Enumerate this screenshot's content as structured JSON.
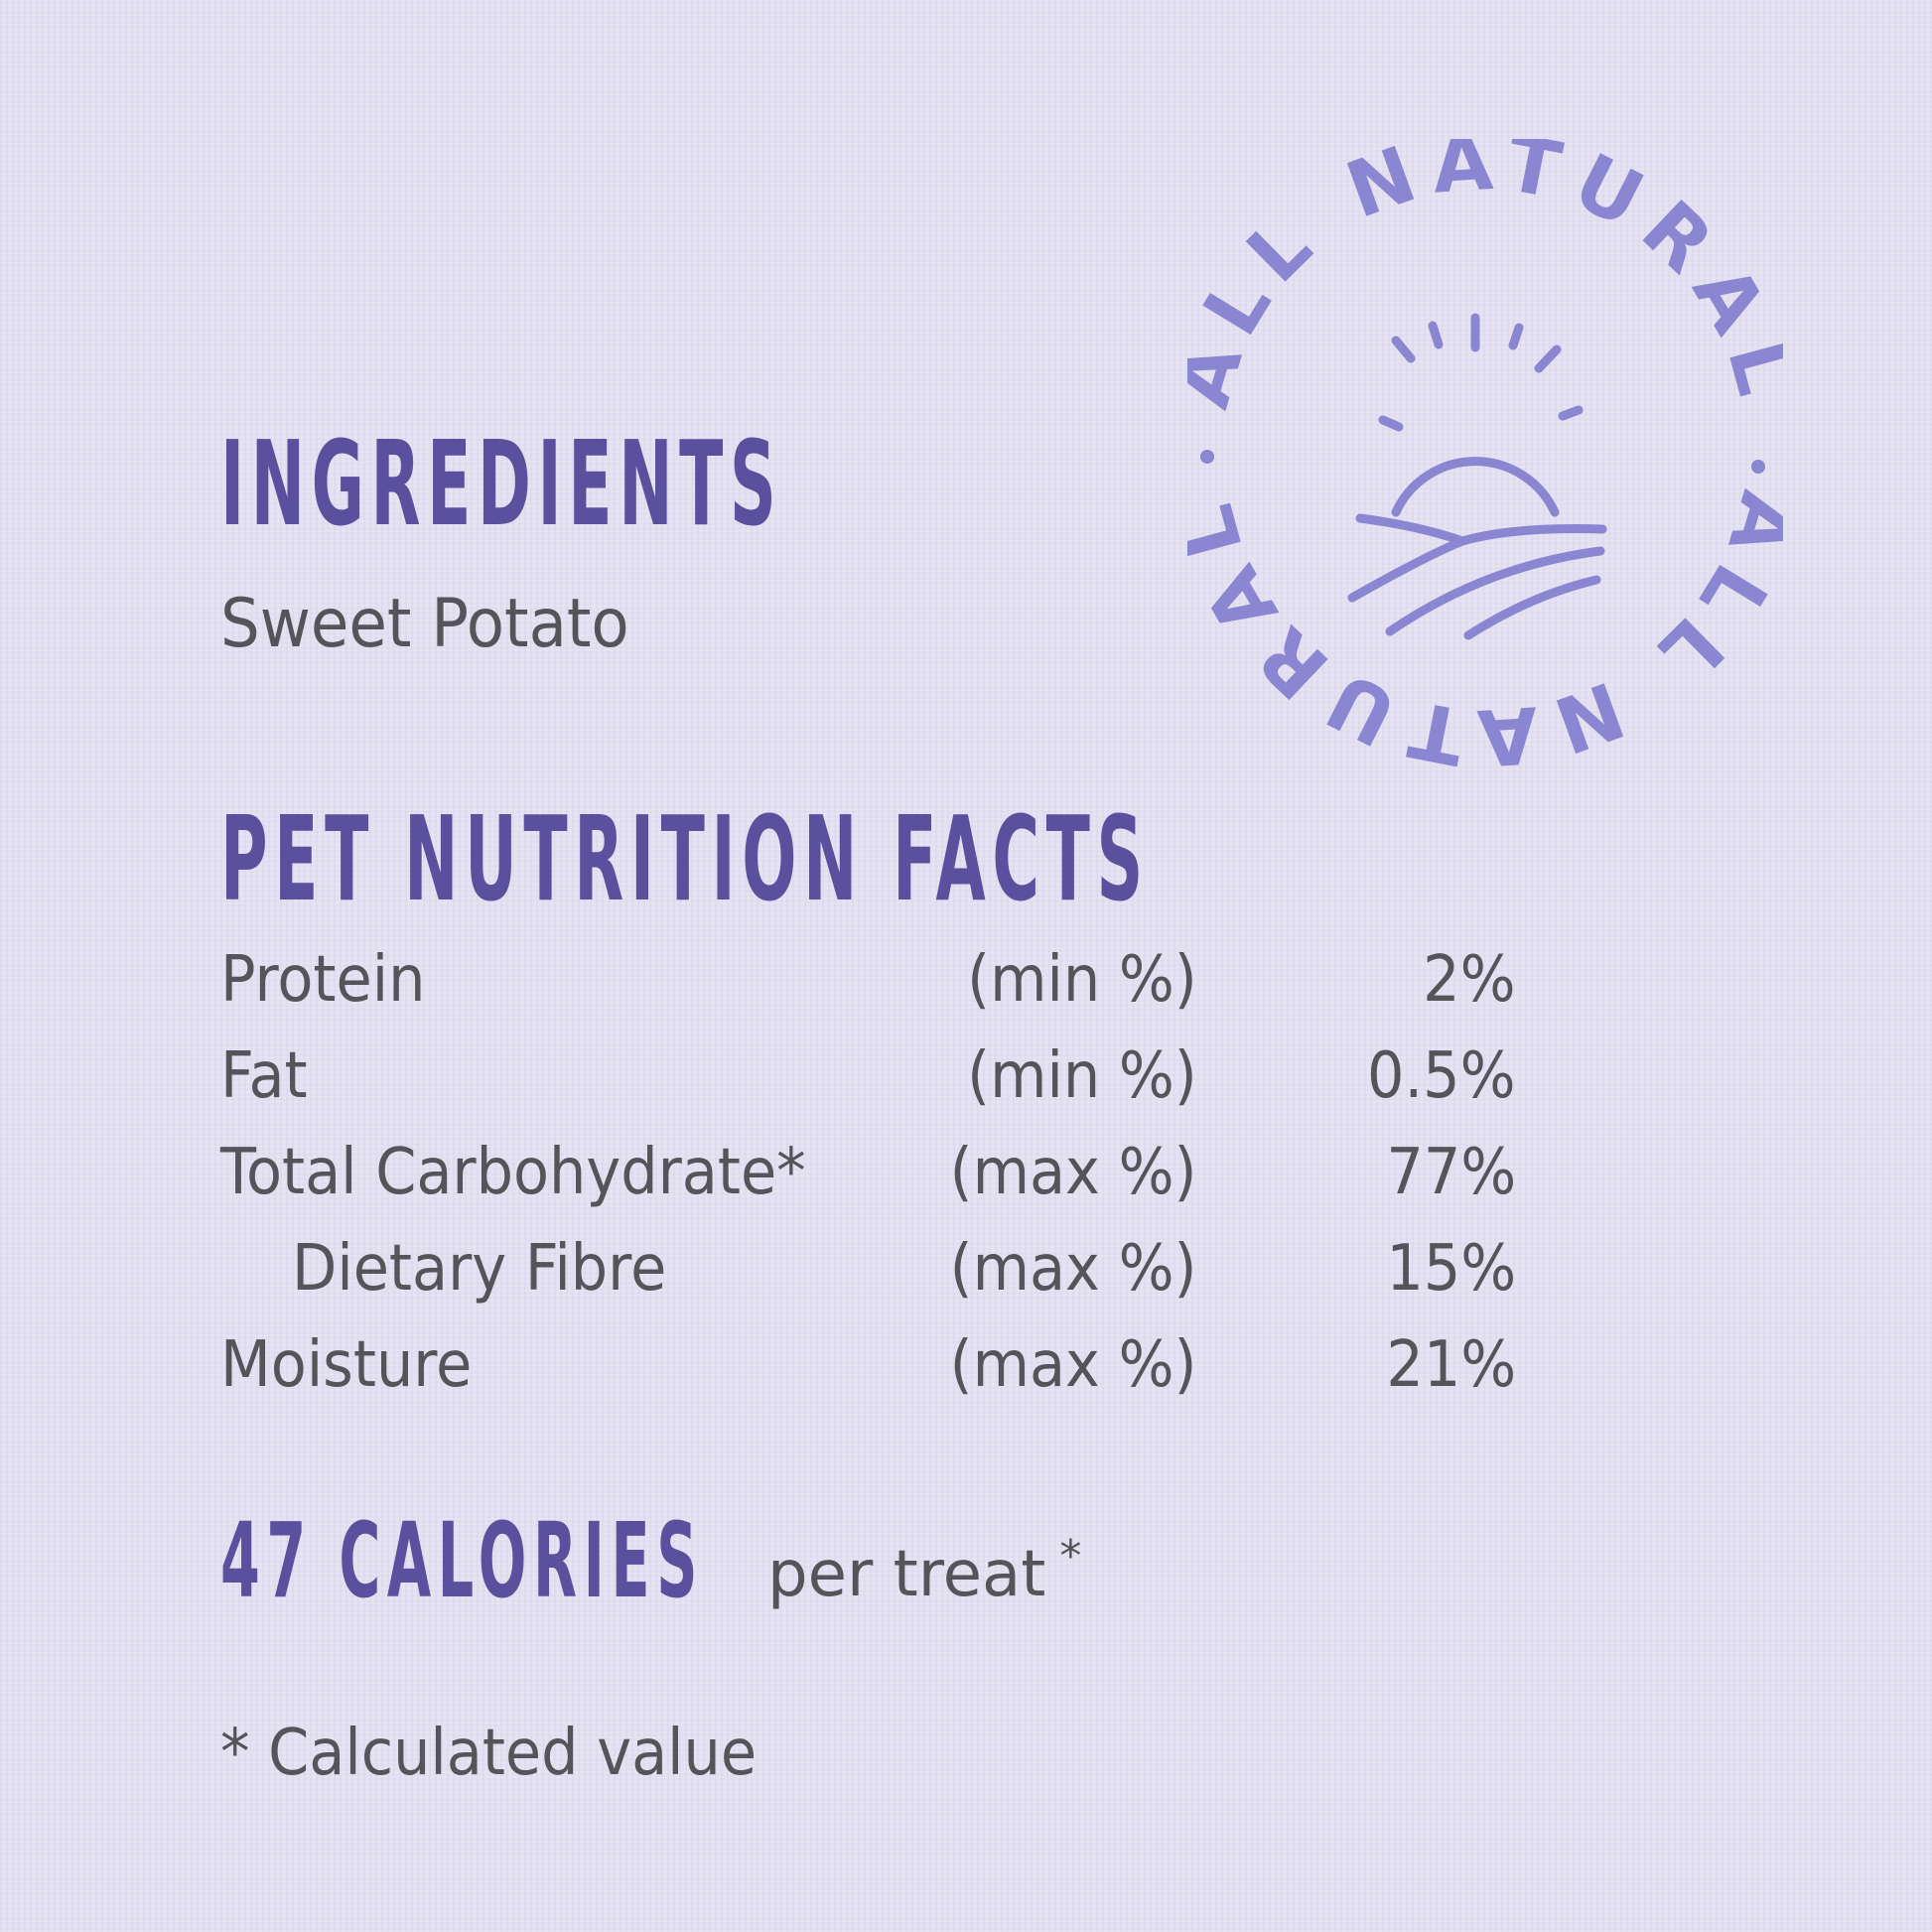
{
  "ingredients": {
    "heading": "INGREDIENTS",
    "text": "Sweet Potato"
  },
  "nutrition": {
    "heading": "PET NUTRITION FACTS",
    "rows": [
      {
        "name": "Protein",
        "unit": "(min %)",
        "value": "2%"
      },
      {
        "name": "Fat",
        "unit": "(min %)",
        "value": "0.5%"
      },
      {
        "name": "Total Carbohydrate*",
        "unit": "(max %)",
        "value": "77%"
      },
      {
        "name": "Dietary Fibre",
        "unit": "(max %)",
        "value": "15%"
      },
      {
        "name": "Moisture",
        "unit": "(max %)",
        "value": "21%"
      }
    ]
  },
  "calories": {
    "heading": "47 CALORIES",
    "suffix": "per treat",
    "asterisk": "*"
  },
  "footnote": "* Calculated value",
  "stamp": {
    "top_text": "ALL NATURAL",
    "bottom_text": "ALL NATURAL",
    "icon": "sunrise-field-icon"
  },
  "colors": {
    "heading": "#5b509d",
    "body": "#54545a",
    "stamp": "#8a86d2",
    "background": "#e3e0f1"
  }
}
